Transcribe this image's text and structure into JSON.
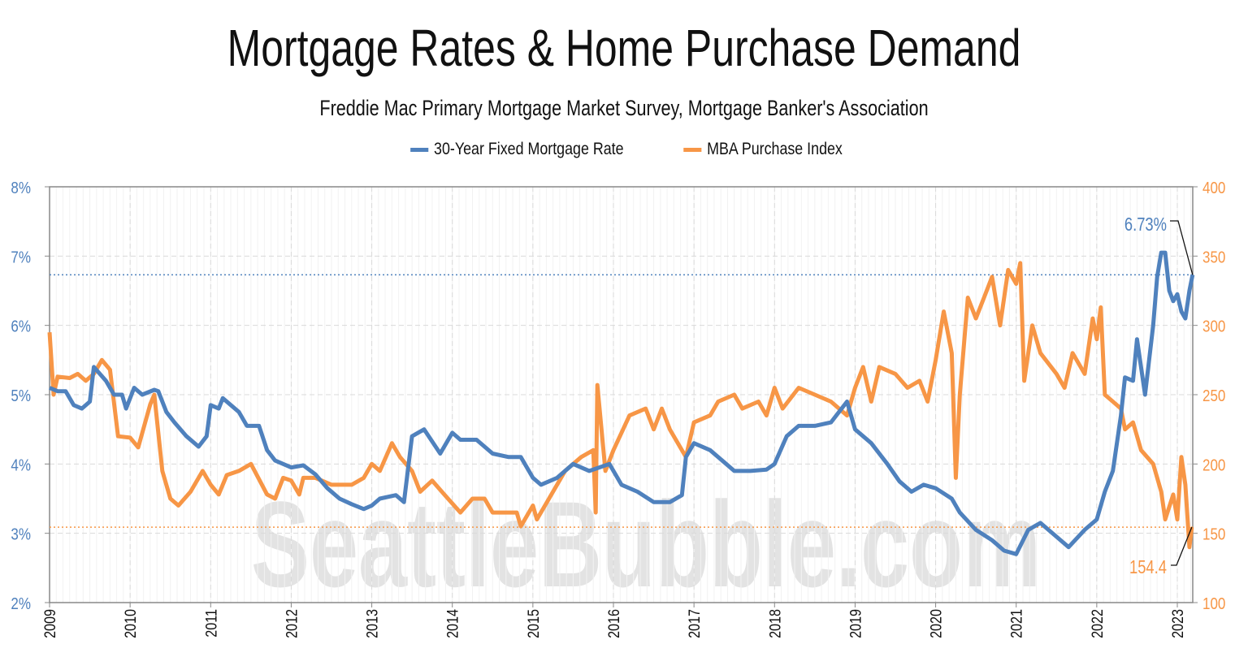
{
  "chart_data": {
    "type": "line",
    "title": "Mortgage Rates & Home Purchase Demand",
    "subtitle": "Freddie Mac Primary Mortgage Market Survey, Mortgage Banker's Association",
    "watermark": "SeattleBubble.com",
    "legend_placement": "top-center",
    "grid": true,
    "x_ticks": [
      "2009",
      "2010",
      "2011",
      "2012",
      "2013",
      "2014",
      "2015",
      "2016",
      "2017",
      "2018",
      "2019",
      "2020",
      "2021",
      "2022",
      "2023"
    ],
    "xlim": [
      2009,
      2023.2
    ],
    "y_left": {
      "ticks": [
        "2%",
        "3%",
        "4%",
        "5%",
        "6%",
        "7%",
        "8%"
      ],
      "ylim": [
        2,
        8
      ],
      "color": "#4f81bd"
    },
    "y_right": {
      "ticks": [
        "100",
        "150",
        "200",
        "250",
        "300",
        "350",
        "400"
      ],
      "ylim": [
        100,
        400
      ],
      "color": "#f79646"
    },
    "series": [
      {
        "name": "30-Year Fixed Mortgage Rate",
        "axis": "left",
        "color": "#4f81bd",
        "last_label": "6.73%",
        "last_value": 6.73,
        "points": [
          [
            2009.0,
            5.1
          ],
          [
            2009.1,
            5.05
          ],
          [
            2009.2,
            5.05
          ],
          [
            2009.3,
            4.85
          ],
          [
            2009.4,
            4.8
          ],
          [
            2009.5,
            4.9
          ],
          [
            2009.55,
            5.4
          ],
          [
            2009.7,
            5.2
          ],
          [
            2009.8,
            5.0
          ],
          [
            2009.9,
            5.0
          ],
          [
            2009.95,
            4.8
          ],
          [
            2010.05,
            5.1
          ],
          [
            2010.15,
            5.0
          ],
          [
            2010.3,
            5.07
          ],
          [
            2010.35,
            5.05
          ],
          [
            2010.45,
            4.75
          ],
          [
            2010.55,
            4.6
          ],
          [
            2010.7,
            4.4
          ],
          [
            2010.85,
            4.25
          ],
          [
            2010.95,
            4.4
          ],
          [
            2011.0,
            4.85
          ],
          [
            2011.1,
            4.8
          ],
          [
            2011.15,
            4.95
          ],
          [
            2011.35,
            4.75
          ],
          [
            2011.45,
            4.55
          ],
          [
            2011.6,
            4.55
          ],
          [
            2011.7,
            4.2
          ],
          [
            2011.8,
            4.05
          ],
          [
            2012.0,
            3.95
          ],
          [
            2012.15,
            3.98
          ],
          [
            2012.3,
            3.85
          ],
          [
            2012.45,
            3.65
          ],
          [
            2012.6,
            3.5
          ],
          [
            2012.75,
            3.42
          ],
          [
            2012.9,
            3.35
          ],
          [
            2013.0,
            3.4
          ],
          [
            2013.1,
            3.5
          ],
          [
            2013.3,
            3.55
          ],
          [
            2013.4,
            3.45
          ],
          [
            2013.5,
            4.4
          ],
          [
            2013.65,
            4.5
          ],
          [
            2013.85,
            4.15
          ],
          [
            2014.0,
            4.45
          ],
          [
            2014.1,
            4.35
          ],
          [
            2014.3,
            4.35
          ],
          [
            2014.5,
            4.15
          ],
          [
            2014.7,
            4.1
          ],
          [
            2014.85,
            4.1
          ],
          [
            2015.0,
            3.8
          ],
          [
            2015.1,
            3.7
          ],
          [
            2015.3,
            3.8
          ],
          [
            2015.5,
            4.0
          ],
          [
            2015.7,
            3.9
          ],
          [
            2015.95,
            4.0
          ],
          [
            2016.1,
            3.7
          ],
          [
            2016.3,
            3.6
          ],
          [
            2016.5,
            3.45
          ],
          [
            2016.7,
            3.45
          ],
          [
            2016.85,
            3.55
          ],
          [
            2016.9,
            4.1
          ],
          [
            2017.0,
            4.3
          ],
          [
            2017.2,
            4.2
          ],
          [
            2017.4,
            4.0
          ],
          [
            2017.5,
            3.9
          ],
          [
            2017.7,
            3.9
          ],
          [
            2017.9,
            3.92
          ],
          [
            2018.0,
            4.0
          ],
          [
            2018.15,
            4.4
          ],
          [
            2018.3,
            4.55
          ],
          [
            2018.5,
            4.55
          ],
          [
            2018.7,
            4.6
          ],
          [
            2018.9,
            4.9
          ],
          [
            2019.0,
            4.5
          ],
          [
            2019.2,
            4.3
          ],
          [
            2019.4,
            4.0
          ],
          [
            2019.55,
            3.75
          ],
          [
            2019.7,
            3.6
          ],
          [
            2019.85,
            3.7
          ],
          [
            2020.0,
            3.65
          ],
          [
            2020.2,
            3.5
          ],
          [
            2020.3,
            3.3
          ],
          [
            2020.5,
            3.05
          ],
          [
            2020.7,
            2.9
          ],
          [
            2020.85,
            2.75
          ],
          [
            2021.0,
            2.7
          ],
          [
            2021.15,
            3.05
          ],
          [
            2021.3,
            3.15
          ],
          [
            2021.5,
            2.95
          ],
          [
            2021.65,
            2.8
          ],
          [
            2021.85,
            3.05
          ],
          [
            2022.0,
            3.2
          ],
          [
            2022.1,
            3.6
          ],
          [
            2022.2,
            3.9
          ],
          [
            2022.3,
            4.7
          ],
          [
            2022.35,
            5.25
          ],
          [
            2022.45,
            5.2
          ],
          [
            2022.5,
            5.8
          ],
          [
            2022.6,
            5.0
          ],
          [
            2022.7,
            6.0
          ],
          [
            2022.75,
            6.7
          ],
          [
            2022.8,
            7.05
          ],
          [
            2022.85,
            7.05
          ],
          [
            2022.9,
            6.5
          ],
          [
            2022.95,
            6.35
          ],
          [
            2023.0,
            6.45
          ],
          [
            2023.05,
            6.2
          ],
          [
            2023.1,
            6.1
          ],
          [
            2023.15,
            6.5
          ],
          [
            2023.19,
            6.73
          ]
        ]
      },
      {
        "name": "MBA Purchase Index",
        "axis": "right",
        "color": "#f79646",
        "last_label": "154.4",
        "last_value": 154.4,
        "points": [
          [
            2009.0,
            295
          ],
          [
            2009.05,
            250
          ],
          [
            2009.1,
            263
          ],
          [
            2009.25,
            262
          ],
          [
            2009.35,
            265
          ],
          [
            2009.45,
            260
          ],
          [
            2009.55,
            265
          ],
          [
            2009.65,
            275
          ],
          [
            2009.75,
            268
          ],
          [
            2009.85,
            220
          ],
          [
            2010.0,
            219
          ],
          [
            2010.1,
            212
          ],
          [
            2010.25,
            243
          ],
          [
            2010.3,
            250
          ],
          [
            2010.4,
            195
          ],
          [
            2010.5,
            175
          ],
          [
            2010.6,
            170
          ],
          [
            2010.75,
            180
          ],
          [
            2010.9,
            195
          ],
          [
            2011.0,
            185
          ],
          [
            2011.1,
            178
          ],
          [
            2011.2,
            192
          ],
          [
            2011.35,
            195
          ],
          [
            2011.5,
            200
          ],
          [
            2011.7,
            178
          ],
          [
            2011.8,
            175
          ],
          [
            2011.9,
            190
          ],
          [
            2012.0,
            188
          ],
          [
            2012.1,
            178
          ],
          [
            2012.15,
            190
          ],
          [
            2012.3,
            190
          ],
          [
            2012.5,
            185
          ],
          [
            2012.6,
            185
          ],
          [
            2012.75,
            185
          ],
          [
            2012.9,
            190
          ],
          [
            2013.0,
            200
          ],
          [
            2013.1,
            195
          ],
          [
            2013.25,
            215
          ],
          [
            2013.35,
            205
          ],
          [
            2013.5,
            195
          ],
          [
            2013.6,
            180
          ],
          [
            2013.75,
            188
          ],
          [
            2013.9,
            178
          ],
          [
            2014.1,
            165
          ],
          [
            2014.25,
            175
          ],
          [
            2014.4,
            175
          ],
          [
            2014.5,
            165
          ],
          [
            2014.8,
            165
          ],
          [
            2014.85,
            155
          ],
          [
            2015.0,
            170
          ],
          [
            2015.05,
            160
          ],
          [
            2015.2,
            175
          ],
          [
            2015.4,
            195
          ],
          [
            2015.6,
            205
          ],
          [
            2015.75,
            210
          ],
          [
            2015.78,
            165
          ],
          [
            2015.8,
            257
          ],
          [
            2015.9,
            195
          ],
          [
            2016.0,
            210
          ],
          [
            2016.2,
            235
          ],
          [
            2016.4,
            240
          ],
          [
            2016.5,
            225
          ],
          [
            2016.6,
            240
          ],
          [
            2016.7,
            225
          ],
          [
            2016.8,
            215
          ],
          [
            2016.9,
            205
          ],
          [
            2017.0,
            230
          ],
          [
            2017.2,
            235
          ],
          [
            2017.3,
            245
          ],
          [
            2017.5,
            250
          ],
          [
            2017.6,
            240
          ],
          [
            2017.8,
            245
          ],
          [
            2017.9,
            235
          ],
          [
            2018.0,
            255
          ],
          [
            2018.1,
            240
          ],
          [
            2018.3,
            255
          ],
          [
            2018.5,
            250
          ],
          [
            2018.7,
            245
          ],
          [
            2018.9,
            235
          ],
          [
            2019.0,
            255
          ],
          [
            2019.1,
            270
          ],
          [
            2019.2,
            245
          ],
          [
            2019.3,
            270
          ],
          [
            2019.5,
            265
          ],
          [
            2019.65,
            255
          ],
          [
            2019.8,
            260
          ],
          [
            2019.9,
            245
          ],
          [
            2020.0,
            275
          ],
          [
            2020.1,
            310
          ],
          [
            2020.2,
            280
          ],
          [
            2020.25,
            190
          ],
          [
            2020.3,
            250
          ],
          [
            2020.4,
            320
          ],
          [
            2020.5,
            305
          ],
          [
            2020.6,
            320
          ],
          [
            2020.7,
            335
          ],
          [
            2020.8,
            300
          ],
          [
            2020.9,
            340
          ],
          [
            2021.0,
            330
          ],
          [
            2021.05,
            345
          ],
          [
            2021.1,
            260
          ],
          [
            2021.2,
            300
          ],
          [
            2021.3,
            280
          ],
          [
            2021.5,
            265
          ],
          [
            2021.6,
            255
          ],
          [
            2021.7,
            280
          ],
          [
            2021.85,
            265
          ],
          [
            2021.95,
            305
          ],
          [
            2022.0,
            290
          ],
          [
            2022.05,
            313
          ],
          [
            2022.1,
            250
          ],
          [
            2022.2,
            245
          ],
          [
            2022.3,
            240
          ],
          [
            2022.35,
            225
          ],
          [
            2022.45,
            230
          ],
          [
            2022.55,
            210
          ],
          [
            2022.7,
            200
          ],
          [
            2022.8,
            180
          ],
          [
            2022.85,
            160
          ],
          [
            2022.95,
            178
          ],
          [
            2023.0,
            160
          ],
          [
            2023.05,
            205
          ],
          [
            2023.1,
            185
          ],
          [
            2023.15,
            140
          ],
          [
            2023.18,
            154.4
          ]
        ]
      }
    ]
  }
}
